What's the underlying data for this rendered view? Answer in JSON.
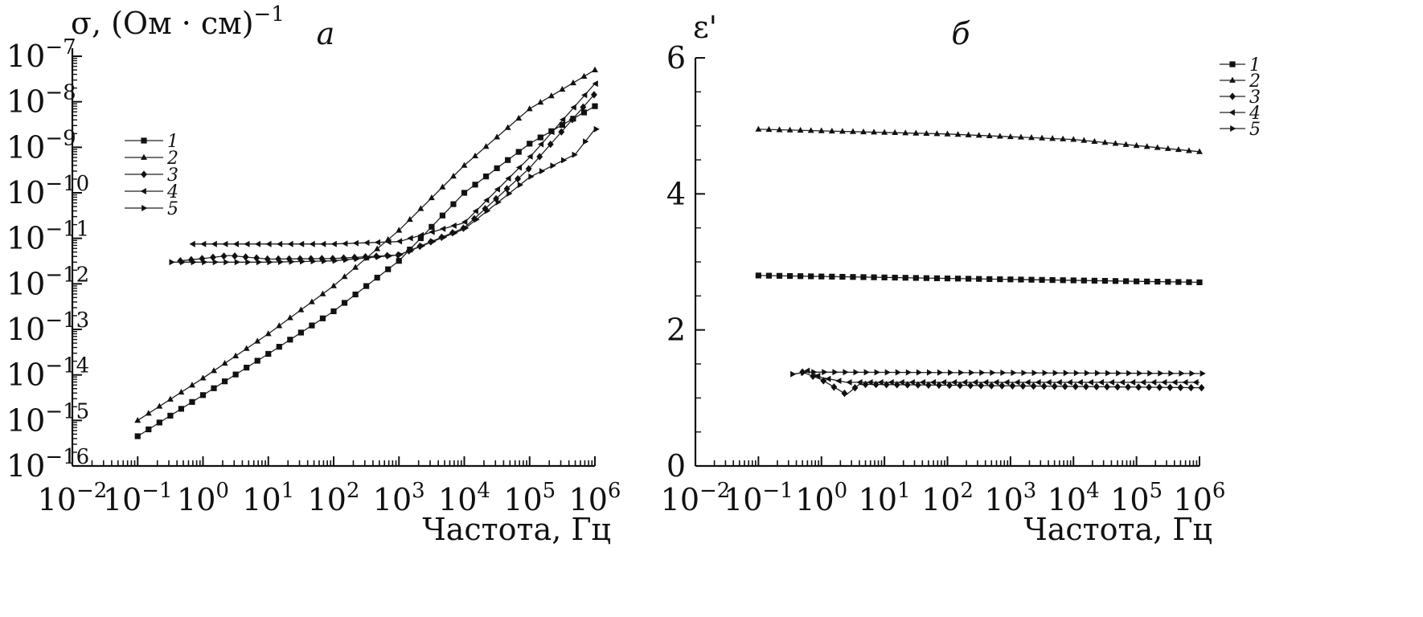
{
  "chart_data": [
    {
      "type": "scatter",
      "panel_label": "а",
      "ylabel": "σ, (Ом · см)",
      "ylabel_sup": "−1",
      "xlabel": "Частота, Гц",
      "x_scale": "log",
      "y_scale": "log",
      "xlim": [
        0.01,
        1000000
      ],
      "ylim": [
        1e-16,
        1e-07
      ],
      "x_tick_labels": [
        {
          "value": 0.01,
          "base": "10",
          "sup": "−2"
        },
        {
          "value": 0.1,
          "base": "10",
          "sup": "−1"
        },
        {
          "value": 1,
          "base": "10",
          "sup": "0"
        },
        {
          "value": 10,
          "base": "10",
          "sup": "1"
        },
        {
          "value": 100,
          "base": "10",
          "sup": "2"
        },
        {
          "value": 1000,
          "base": "10",
          "sup": "3"
        },
        {
          "value": 10000,
          "base": "10",
          "sup": "4"
        },
        {
          "value": 100000,
          "base": "10",
          "sup": "5"
        },
        {
          "value": 1000000,
          "base": "10",
          "sup": "6"
        }
      ],
      "y_tick_labels": [
        {
          "value": 1e-16,
          "base": "10",
          "sup": "−16"
        },
        {
          "value": 1e-15,
          "base": "10",
          "sup": "−15"
        },
        {
          "value": 1e-14,
          "base": "10",
          "sup": "−14"
        },
        {
          "value": 1e-13,
          "base": "10",
          "sup": "−13"
        },
        {
          "value": 1e-12,
          "base": "10",
          "sup": "−12"
        },
        {
          "value": 1e-11,
          "base": "10",
          "sup": "−11"
        },
        {
          "value": 1e-10,
          "base": "10",
          "sup": "−10"
        },
        {
          "value": 1e-09,
          "base": "10",
          "sup": "−9"
        },
        {
          "value": 1e-08,
          "base": "10",
          "sup": "−8"
        },
        {
          "value": 1e-07,
          "base": "10",
          "sup": "−7"
        }
      ],
      "legend_placement": "upper-left",
      "series": [
        {
          "name": "1",
          "marker": "square",
          "points": [
            [
              0.1,
              4.5e-16
            ],
            [
              1,
              3.6e-15
            ],
            [
              10,
              2.9e-14
            ],
            [
              100,
              2.5e-13
            ],
            [
              1000,
              3.2e-12
            ],
            [
              10000,
              1e-10
            ],
            [
              100000,
              1.2e-09
            ],
            [
              1000000,
              8e-09
            ]
          ]
        },
        {
          "name": "2",
          "marker": "triangle-up",
          "points": [
            [
              0.1,
              1e-15
            ],
            [
              1,
              8.5e-15
            ],
            [
              10,
              8e-14
            ],
            [
              100,
              9e-13
            ],
            [
              1000,
              1.5e-11
            ],
            [
              10000,
              4e-10
            ],
            [
              100000,
              7e-09
            ],
            [
              1000000,
              5e-08
            ]
          ]
        },
        {
          "name": "3",
          "marker": "diamond",
          "points": [
            [
              0.45,
              3.2e-12
            ],
            [
              1,
              3.6e-12
            ],
            [
              2.5,
              4.2e-12
            ],
            [
              10,
              3.5e-12
            ],
            [
              100,
              3.6e-12
            ],
            [
              1000,
              4.3e-12
            ],
            [
              10000,
              1.7e-11
            ],
            [
              100000,
              3.5e-10
            ],
            [
              1000000,
              1.5e-08
            ]
          ]
        },
        {
          "name": "4",
          "marker": "triangle-left",
          "points": [
            [
              0.7,
              7.5e-12
            ],
            [
              10,
              7.5e-12
            ],
            [
              100,
              7.5e-12
            ],
            [
              1000,
              8.5e-12
            ],
            [
              10000,
              2.2e-11
            ],
            [
              100000,
              6e-10
            ],
            [
              1000000,
              2.5e-08
            ]
          ]
        },
        {
          "name": "5",
          "marker": "triangle-right",
          "points": [
            [
              0.33,
              3e-12
            ],
            [
              1,
              3e-12
            ],
            [
              10,
              3e-12
            ],
            [
              100,
              3.2e-12
            ],
            [
              1000,
              4.3e-12
            ],
            [
              10000,
              1.6e-11
            ],
            [
              100000,
              2.2e-10
            ],
            [
              500000,
              7e-10
            ],
            [
              1000000,
              2.5e-09
            ]
          ]
        }
      ]
    },
    {
      "type": "scatter",
      "panel_label": "б",
      "ylabel": "ε'",
      "xlabel": "Частота, Гц",
      "x_scale": "log",
      "y_scale": "linear",
      "xlim": [
        0.01,
        1000000
      ],
      "ylim": [
        0,
        6
      ],
      "x_tick_labels": [
        {
          "value": 0.01,
          "base": "10",
          "sup": "−2"
        },
        {
          "value": 0.1,
          "base": "10",
          "sup": "−1"
        },
        {
          "value": 1,
          "base": "10",
          "sup": "0"
        },
        {
          "value": 10,
          "base": "10",
          "sup": "1"
        },
        {
          "value": 100,
          "base": "10",
          "sup": "2"
        },
        {
          "value": 1000,
          "base": "10",
          "sup": "3"
        },
        {
          "value": 10000,
          "base": "10",
          "sup": "4"
        },
        {
          "value": 100000,
          "base": "10",
          "sup": "5"
        },
        {
          "value": 1000000,
          "base": "10",
          "sup": "6"
        }
      ],
      "y_tick_labels": [
        {
          "value": 0,
          "base": "0"
        },
        {
          "value": 2,
          "base": "2"
        },
        {
          "value": 4,
          "base": "4"
        },
        {
          "value": 6,
          "base": "6"
        }
      ],
      "legend_placement": "top-right",
      "series": [
        {
          "name": "1",
          "marker": "square",
          "points": [
            [
              0.1,
              2.8
            ],
            [
              1000000,
              2.7
            ]
          ]
        },
        {
          "name": "2",
          "marker": "triangle-up",
          "points": [
            [
              0.1,
              4.95
            ],
            [
              100,
              4.88
            ],
            [
              10000,
              4.8
            ],
            [
              1000000,
              4.62
            ]
          ]
        },
        {
          "name": "3",
          "marker": "diamond",
          "points": [
            [
              0.5,
              1.38
            ],
            [
              1,
              1.27
            ],
            [
              2.5,
              1.05
            ],
            [
              4,
              1.2
            ],
            [
              1000000,
              1.15
            ]
          ]
        },
        {
          "name": "4",
          "marker": "triangle-left",
          "points": [
            [
              0.6,
              1.4
            ],
            [
              1,
              1.3
            ],
            [
              2.5,
              1.23
            ],
            [
              1000000,
              1.23
            ]
          ]
        },
        {
          "name": "5",
          "marker": "triangle-right",
          "points": [
            [
              0.35,
              1.35
            ],
            [
              0.6,
              1.38
            ],
            [
              1,
              1.38
            ],
            [
              1000000,
              1.36
            ]
          ]
        }
      ]
    }
  ]
}
